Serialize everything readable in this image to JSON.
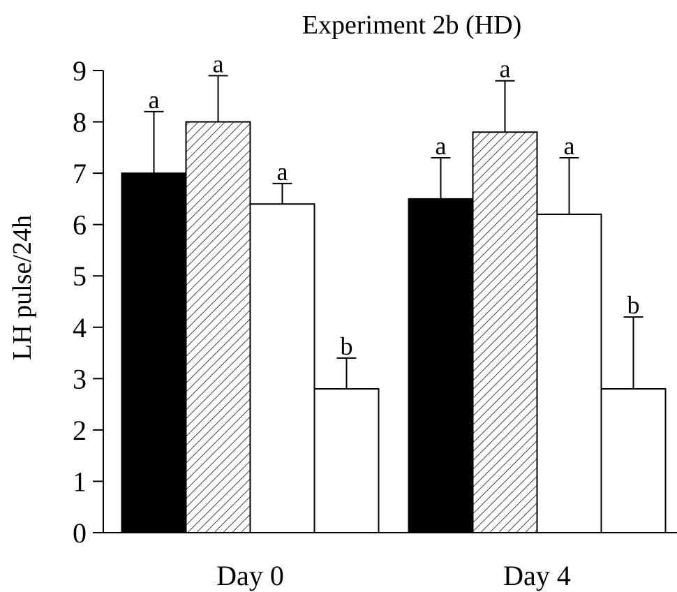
{
  "chart_data": {
    "type": "bar",
    "title": "Experiment 2b (HD)",
    "y_label": "LH pulse/24h",
    "categories": [
      "Day 0",
      "Day 4"
    ],
    "series": [
      {
        "color": "#000000",
        "hatch": "none",
        "values": [
          7.0,
          6.5
        ],
        "errors": [
          1.2,
          0.8
        ],
        "letters": [
          "a",
          "a"
        ]
      },
      {
        "color": "#ffffff",
        "hatch": "/",
        "values": [
          8.0,
          7.8
        ],
        "errors": [
          0.9,
          1.0
        ],
        "letters": [
          "a",
          "a"
        ]
      },
      {
        "color": "#ffffff",
        "hatch": "\\",
        "values": [
          6.4,
          6.2
        ],
        "errors": [
          0.4,
          1.1
        ],
        "letters": [
          "a",
          "a"
        ]
      },
      {
        "color": "#ffffff",
        "hatch": "none",
        "values": [
          2.8,
          2.8
        ],
        "errors": [
          0.6,
          1.4
        ],
        "letters": [
          "b",
          "b"
        ]
      }
    ],
    "ylim": [
      0,
      9
    ],
    "yticks": [
      0,
      1,
      2,
      3,
      4,
      5,
      6,
      7,
      8,
      9
    ]
  }
}
